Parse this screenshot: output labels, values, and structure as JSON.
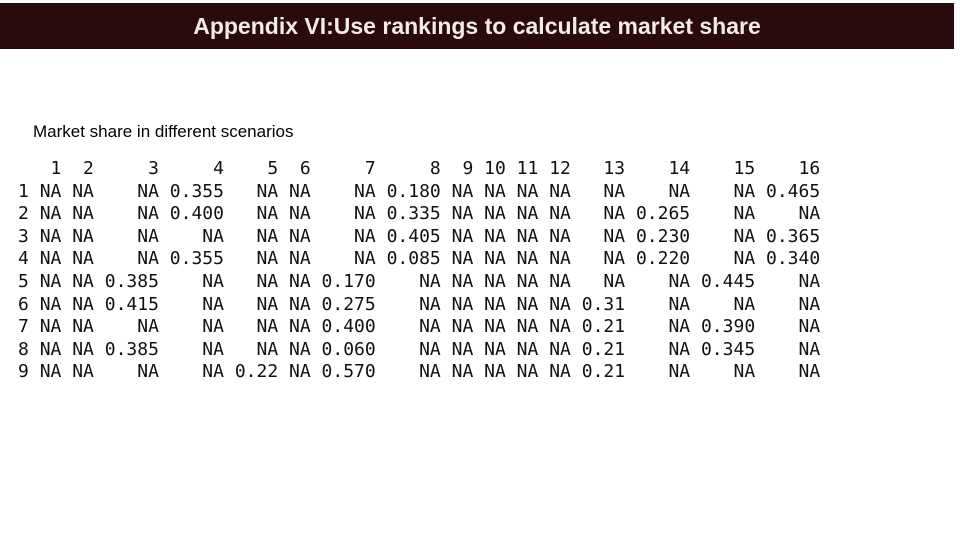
{
  "slide": {
    "title": "Appendix VI:Use rankings to calculate market share",
    "caption": "Market share in different scenarios"
  },
  "table": {
    "columns": [
      "1",
      "2",
      "3",
      "4",
      "5",
      "6",
      "7",
      "8",
      "9",
      "10",
      "11",
      "12",
      "13",
      "14",
      "15",
      "16"
    ],
    "rows": [
      {
        "name": "1",
        "values": [
          "NA",
          "NA",
          "NA",
          "0.355",
          "NA",
          "NA",
          "NA",
          "0.180",
          "NA",
          "NA",
          "NA",
          "NA",
          "NA",
          "NA",
          "NA",
          "0.465"
        ]
      },
      {
        "name": "2",
        "values": [
          "NA",
          "NA",
          "NA",
          "0.400",
          "NA",
          "NA",
          "NA",
          "0.335",
          "NA",
          "NA",
          "NA",
          "NA",
          "NA",
          "0.265",
          "NA",
          "NA"
        ]
      },
      {
        "name": "3",
        "values": [
          "NA",
          "NA",
          "NA",
          "NA",
          "NA",
          "NA",
          "NA",
          "0.405",
          "NA",
          "NA",
          "NA",
          "NA",
          "NA",
          "0.230",
          "NA",
          "0.365"
        ]
      },
      {
        "name": "4",
        "values": [
          "NA",
          "NA",
          "NA",
          "0.355",
          "NA",
          "NA",
          "NA",
          "0.085",
          "NA",
          "NA",
          "NA",
          "NA",
          "NA",
          "0.220",
          "NA",
          "0.340"
        ]
      },
      {
        "name": "5",
        "values": [
          "NA",
          "NA",
          "0.385",
          "NA",
          "NA",
          "NA",
          "0.170",
          "NA",
          "NA",
          "NA",
          "NA",
          "NA",
          "NA",
          "NA",
          "0.445",
          "NA"
        ]
      },
      {
        "name": "6",
        "values": [
          "NA",
          "NA",
          "0.415",
          "NA",
          "NA",
          "NA",
          "0.275",
          "NA",
          "NA",
          "NA",
          "NA",
          "NA",
          "0.31",
          "NA",
          "NA",
          "NA"
        ]
      },
      {
        "name": "7",
        "values": [
          "NA",
          "NA",
          "NA",
          "NA",
          "NA",
          "NA",
          "0.400",
          "NA",
          "NA",
          "NA",
          "NA",
          "NA",
          "0.21",
          "NA",
          "0.390",
          "NA"
        ]
      },
      {
        "name": "8",
        "values": [
          "NA",
          "NA",
          "0.385",
          "NA",
          "NA",
          "NA",
          "0.060",
          "NA",
          "NA",
          "NA",
          "NA",
          "NA",
          "0.21",
          "NA",
          "0.345",
          "NA"
        ]
      },
      {
        "name": "9",
        "values": [
          "NA",
          "NA",
          "NA",
          "NA",
          "0.22",
          "NA",
          "0.570",
          "NA",
          "NA",
          "NA",
          "NA",
          "NA",
          "0.21",
          "NA",
          "NA",
          "NA"
        ]
      }
    ]
  }
}
